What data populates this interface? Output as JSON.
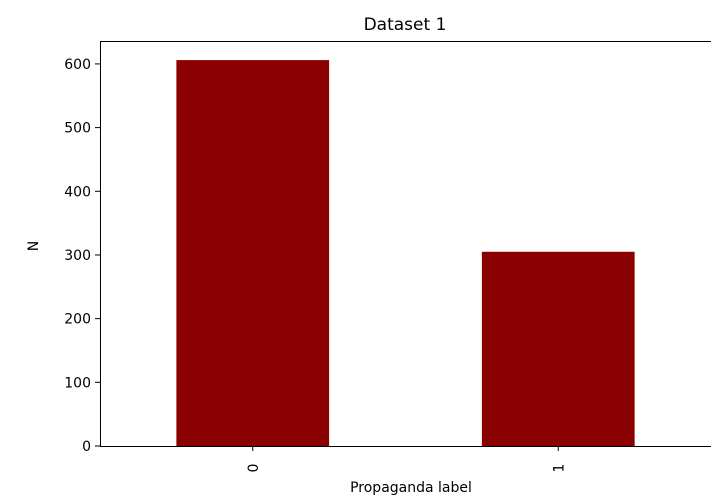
{
  "chart_data": {
    "type": "bar",
    "title": "Dataset 1",
    "xlabel": "Propaganda label",
    "ylabel": "N",
    "categories": [
      "0",
      "1"
    ],
    "values": [
      606,
      305
    ],
    "ylim": [
      0,
      636
    ],
    "yticks": [
      0,
      100,
      200,
      300,
      400,
      500,
      600
    ],
    "bar_color": "#8b0000",
    "grid": false,
    "legend": "none"
  }
}
